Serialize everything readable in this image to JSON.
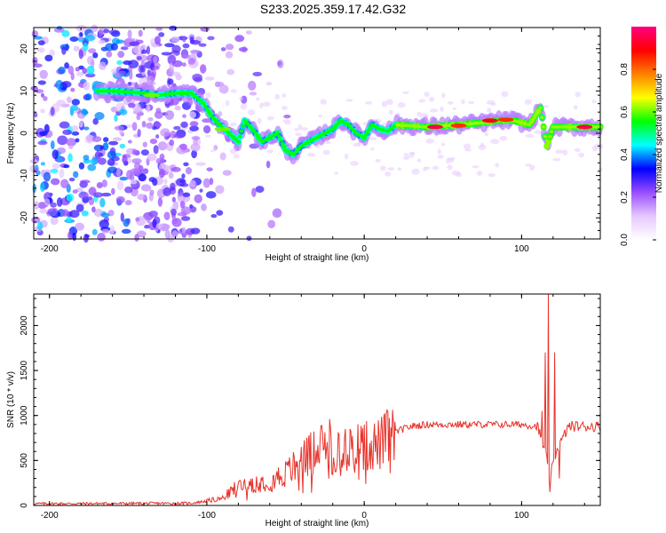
{
  "title": "S233.2025.359.17.42.G32",
  "chart_data": [
    {
      "type": "heatmap",
      "xlabel": "Height of straight line (km)",
      "ylabel": "Frequency (Hz)",
      "xlim": [
        -210,
        150
      ],
      "ylim": [
        -25,
        25
      ],
      "xticks": [
        -200,
        -100,
        0,
        100
      ],
      "xtick_labels": [
        "-200",
        "-100",
        "0",
        "100"
      ],
      "yticks": [
        -20,
        -10,
        0,
        10,
        20
      ],
      "ytick_labels": [
        "-20",
        "-10",
        "0",
        "10",
        "20"
      ],
      "colorbar": {
        "label": "Normalized spectral amplitude",
        "range": [
          0,
          1
        ],
        "ticks": [
          0.0,
          0.2,
          0.4,
          0.6,
          0.8
        ],
        "tick_labels": [
          "0.0",
          "0.2",
          "0.4",
          "0.6",
          "0.8"
        ],
        "colormap": [
          "#ffffff",
          "#e6c8ff",
          "#9a4dff",
          "#0000ff",
          "#00ffff",
          "#00ff00",
          "#ffff00",
          "#ff8000",
          "#ff0000",
          "#ff0080"
        ]
      },
      "ridge_trace": [
        [
          -170,
          10
        ],
        [
          -160,
          10
        ],
        [
          -140,
          9.5
        ],
        [
          -130,
          9
        ],
        [
          -120,
          9.5
        ],
        [
          -110,
          9.5
        ],
        [
          -102,
          7
        ],
        [
          -97,
          4
        ],
        [
          -92,
          2
        ],
        [
          -86,
          0
        ],
        [
          -80,
          -2
        ],
        [
          -76,
          3
        ],
        [
          -70,
          0.5
        ],
        [
          -65,
          -2
        ],
        [
          -60,
          -1
        ],
        [
          -55,
          0
        ],
        [
          -50,
          -4
        ],
        [
          -45,
          -5
        ],
        [
          -40,
          -3
        ],
        [
          -35,
          -2
        ],
        [
          -30,
          -1
        ],
        [
          -25,
          0
        ],
        [
          -20,
          1
        ],
        [
          -15,
          3
        ],
        [
          -10,
          2
        ],
        [
          -5,
          0
        ],
        [
          0,
          -1
        ],
        [
          5,
          2
        ],
        [
          10,
          1
        ],
        [
          15,
          0.5
        ],
        [
          20,
          2
        ],
        [
          40,
          1.5
        ],
        [
          60,
          2
        ],
        [
          75,
          2.5
        ],
        [
          85,
          3
        ],
        [
          95,
          3
        ],
        [
          105,
          2
        ],
        [
          112,
          6
        ],
        [
          116,
          -3
        ],
        [
          120,
          1.5
        ],
        [
          150,
          1.5
        ]
      ],
      "hot_spots": [
        {
          "x": -135,
          "y": 9,
          "level": 0.6
        },
        {
          "x": -115,
          "y": 9.5,
          "level": 0.55
        },
        {
          "x": -90,
          "y": 1,
          "level": 0.6
        },
        {
          "x": 45,
          "y": 1.5,
          "level": 0.95
        },
        {
          "x": 60,
          "y": 1.8,
          "level": 0.85
        },
        {
          "x": 80,
          "y": 3,
          "level": 0.9
        },
        {
          "x": 90,
          "y": 3.2,
          "level": 0.85
        },
        {
          "x": 140,
          "y": 1.5,
          "level": 0.95
        }
      ]
    },
    {
      "type": "line",
      "xlabel": "Height of straight line (km)",
      "ylabel": "SNR (10 * v/v)",
      "xlim": [
        -210,
        150
      ],
      "ylim": [
        0,
        2350
      ],
      "xticks": [
        -200,
        -100,
        0,
        100
      ],
      "xtick_labels": [
        "-200",
        "-100",
        "0",
        "100"
      ],
      "yticks": [
        0,
        500,
        1000,
        1500,
        2000
      ],
      "ytick_labels": [
        "0",
        "500",
        "1000",
        "1500",
        "2000"
      ],
      "series": [
        {
          "name": "SNR",
          "color": "#e8322a",
          "envelope": [
            [
              -210,
              20
            ],
            [
              -150,
              22
            ],
            [
              -110,
              25
            ],
            [
              -100,
              50
            ],
            [
              -90,
              80
            ],
            [
              -80,
              220
            ],
            [
              -70,
              250
            ],
            [
              -60,
              280
            ],
            [
              -50,
              350
            ],
            [
              -40,
              500
            ],
            [
              -30,
              620
            ],
            [
              -20,
              700
            ],
            [
              -10,
              650
            ],
            [
              0,
              650
            ],
            [
              10,
              680
            ],
            [
              20,
              820
            ],
            [
              30,
              880
            ],
            [
              40,
              900
            ],
            [
              60,
              900
            ],
            [
              80,
              900
            ],
            [
              100,
              900
            ],
            [
              110,
              880
            ],
            [
              115,
              600
            ],
            [
              118,
              300
            ],
            [
              122,
              600
            ],
            [
              130,
              880
            ],
            [
              150,
              880
            ]
          ],
          "spikes": [
            {
              "x": -40,
              "y": 650
            },
            {
              "x": -35,
              "y": 780
            },
            {
              "x": -22,
              "y": 960
            },
            {
              "x": -12,
              "y": 850
            },
            {
              "x": 0,
              "y": 900
            },
            {
              "x": 113,
              "y": 1050
            },
            {
              "x": 115,
              "y": 1700
            },
            {
              "x": 117,
              "y": 2350
            },
            {
              "x": 118,
              "y": 150
            },
            {
              "x": 121,
              "y": 1700
            },
            {
              "x": 124,
              "y": 300
            }
          ]
        }
      ]
    }
  ]
}
